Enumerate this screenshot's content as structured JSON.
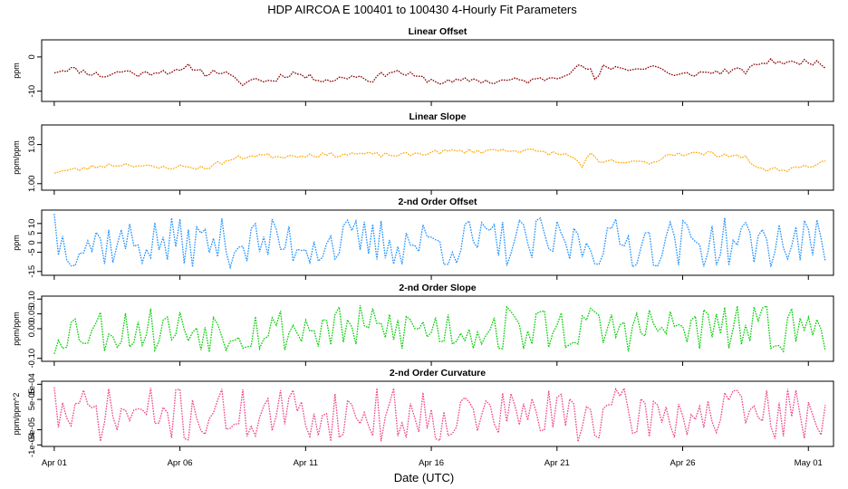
{
  "figure": {
    "title": "HDP   AIRCOA E   100401 to 100430   4-Hourly Fit Parameters",
    "xlabel": "Date (UTC)"
  },
  "chart_data": [
    {
      "type": "line",
      "title": "Linear Offset",
      "ylabel": "ppm",
      "color": "#8b0000",
      "ylim": [
        -13,
        5
      ],
      "yticks": [
        -10,
        0
      ],
      "ytick_labels": [
        "-10",
        "0"
      ],
      "xlim": [
        -0.5,
        31
      ],
      "x_step_days": 0.1667,
      "series": [
        {
          "name": "Linear Offset",
          "x_start_day": 0.0,
          "knots": [
            [
              0.0,
              -4.2
            ],
            [
              0.6,
              -3.4
            ],
            [
              1.2,
              -4.3
            ],
            [
              2.0,
              -5.6
            ],
            [
              2.8,
              -4.0
            ],
            [
              3.4,
              -5.2
            ],
            [
              4.2,
              -4.0
            ],
            [
              5.0,
              -4.5
            ],
            [
              5.4,
              -2.6
            ],
            [
              6.0,
              -4.8
            ],
            [
              6.6,
              -4.2
            ],
            [
              7.0,
              -5.6
            ],
            [
              7.4,
              -8.0
            ],
            [
              8.0,
              -6.4
            ],
            [
              8.6,
              -7.2
            ],
            [
              9.0,
              -5.6
            ],
            [
              9.6,
              -4.6
            ],
            [
              10.0,
              -5.8
            ],
            [
              11.0,
              -6.8
            ],
            [
              12.0,
              -5.4
            ],
            [
              12.6,
              -6.8
            ],
            [
              13.4,
              -4.0
            ],
            [
              14.0,
              -5.0
            ],
            [
              14.6,
              -6.2
            ],
            [
              15.4,
              -7.4
            ],
            [
              16.0,
              -7.3
            ],
            [
              16.6,
              -6.5
            ],
            [
              17.4,
              -7.4
            ],
            [
              18.0,
              -6.8
            ],
            [
              19.0,
              -7.0
            ],
            [
              20.0,
              -5.6
            ],
            [
              20.6,
              -4.0
            ],
            [
              21.0,
              -2.5
            ],
            [
              21.4,
              -4.6
            ],
            [
              21.6,
              -8.0
            ],
            [
              21.8,
              -2.8
            ],
            [
              22.6,
              -3.2
            ],
            [
              23.4,
              -3.6
            ],
            [
              24.0,
              -2.5
            ],
            [
              24.6,
              -5.8
            ],
            [
              25.2,
              -5.0
            ],
            [
              26.0,
              -4.6
            ],
            [
              27.0,
              -4.0
            ],
            [
              27.6,
              -4.2
            ],
            [
              28.0,
              -1.8
            ],
            [
              28.8,
              -1.2
            ],
            [
              29.4,
              -2.0
            ],
            [
              30.0,
              -1.0
            ],
            [
              30.5,
              -2.4
            ],
            [
              30.8,
              -2.8
            ]
          ],
          "jitter": 0.9,
          "seed": 11
        }
      ]
    },
    {
      "type": "line",
      "title": "Linear Slope",
      "ylabel": "ppm/ppm",
      "color": "#ffa500",
      "ylim": [
        0.995,
        1.045
      ],
      "yticks": [
        1.0,
        1.03
      ],
      "ytick_labels": [
        "1.00",
        "1.03"
      ],
      "xlim": [
        -0.5,
        31
      ],
      "x_step_days": 0.1667,
      "series": [
        {
          "name": "Linear Slope",
          "x_start_day": 0.0,
          "knots": [
            [
              0.0,
              1.009
            ],
            [
              1.0,
              1.011
            ],
            [
              2.0,
              1.014
            ],
            [
              3.0,
              1.015
            ],
            [
              4.0,
              1.012
            ],
            [
              5.0,
              1.013
            ],
            [
              6.0,
              1.012
            ],
            [
              6.6,
              1.016
            ],
            [
              7.4,
              1.02
            ],
            [
              8.0,
              1.022
            ],
            [
              9.0,
              1.021
            ],
            [
              10.0,
              1.022
            ],
            [
              11.0,
              1.022
            ],
            [
              12.0,
              1.023
            ],
            [
              13.0,
              1.022
            ],
            [
              14.0,
              1.022
            ],
            [
              15.0,
              1.024
            ],
            [
              16.0,
              1.025
            ],
            [
              17.0,
              1.025
            ],
            [
              18.0,
              1.026
            ],
            [
              19.0,
              1.025
            ],
            [
              20.0,
              1.023
            ],
            [
              20.6,
              1.021
            ],
            [
              21.0,
              1.014
            ],
            [
              21.4,
              1.024
            ],
            [
              21.6,
              1.015
            ],
            [
              22.0,
              1.017
            ],
            [
              23.0,
              1.016
            ],
            [
              24.0,
              1.017
            ],
            [
              24.4,
              1.023
            ],
            [
              25.0,
              1.023
            ],
            [
              26.0,
              1.023
            ],
            [
              27.0,
              1.022
            ],
            [
              27.6,
              1.019
            ],
            [
              28.0,
              1.011
            ],
            [
              29.0,
              1.011
            ],
            [
              29.6,
              1.012
            ],
            [
              30.0,
              1.014
            ],
            [
              30.8,
              1.016
            ]
          ],
          "jitter": 0.0018,
          "seed": 23
        }
      ]
    },
    {
      "type": "line",
      "title": "2-nd Order Offset",
      "ylabel": "ppm",
      "color": "#1e90ff",
      "ylim": [
        -17,
        17
      ],
      "yticks": [
        -15,
        -5,
        0,
        5,
        10
      ],
      "ytick_labels": [
        "-15",
        "-5",
        "0",
        "5",
        "10"
      ],
      "xlim": [
        -0.5,
        31
      ],
      "x_step_days": 0.1667,
      "series": [
        {
          "name": "2-nd Order Offset",
          "x_start_day": 0.0,
          "first_value": 15,
          "amplitude": 13,
          "seed": 37
        }
      ]
    },
    {
      "type": "line",
      "title": "2-nd Order Slope",
      "ylabel": "ppm/ppm",
      "color": "#00cc00",
      "ylim": [
        -0.11,
        0.11
      ],
      "yticks": [
        -0.1,
        0.0,
        0.05,
        0.1
      ],
      "ytick_labels": [
        "-0.10",
        "0.00",
        "0.05",
        "0.10"
      ],
      "xlim": [
        -0.5,
        31
      ],
      "x_step_days": 0.1667,
      "series": [
        {
          "name": "2-nd Order Slope",
          "x_start_day": 0.0,
          "first_value": -0.085,
          "amplitude": 0.08,
          "seed": 53
        }
      ]
    },
    {
      "type": "line",
      "title": "2-nd Order Curvature",
      "ylabel": "ppm/ppm^2",
      "color": "#ee4488",
      "ylim": [
        -0.000105,
        0.00011
      ],
      "yticks": [
        -0.0001,
        -5e-05,
        5e-05,
        0.0001
      ],
      "ytick_labels": [
        "-1e-04",
        "-5e-05",
        "5e-05",
        "1e-04"
      ],
      "xlim": [
        -0.5,
        31
      ],
      "x_step_days": 0.1667,
      "series": [
        {
          "name": "2-nd Order Curvature",
          "x_start_day": 0.0,
          "first_value": 9e-05,
          "amplitude": 9e-05,
          "seed": 71
        }
      ]
    }
  ],
  "x_axis": {
    "ticks": [
      0,
      5,
      10,
      15,
      20,
      25,
      30
    ],
    "labels": [
      "Apr 01",
      "Apr 06",
      "Apr 11",
      "Apr 16",
      "Apr 21",
      "Apr 26",
      "May 01"
    ]
  }
}
